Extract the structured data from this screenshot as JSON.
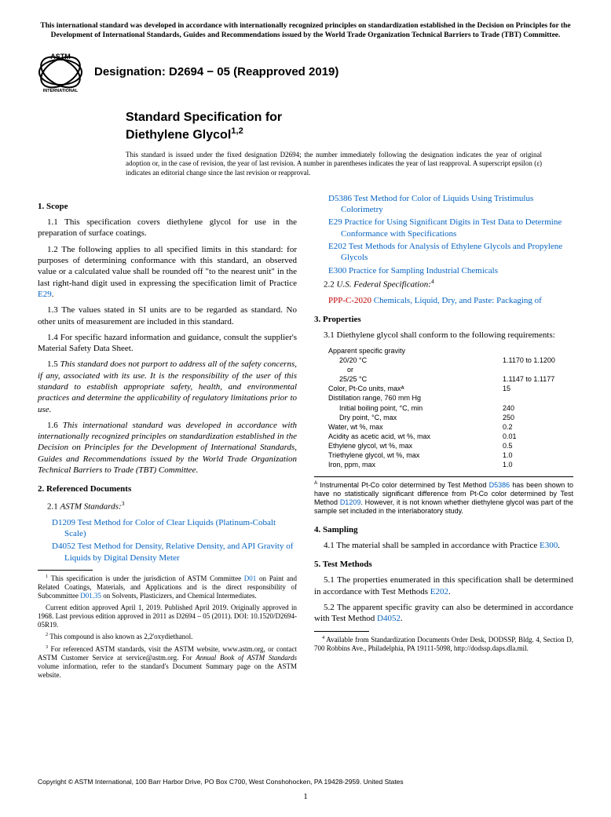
{
  "top_notice": "This international standard was developed in accordance with internationally recognized principles on standardization established in the Decision on Principles for the Development of International Standards, Guides and Recommendations issued by the World Trade Organization Technical Barriers to Trade (TBT) Committee.",
  "logo": {
    "top_text": "ASTM",
    "bottom_text": "INTERNATIONAL"
  },
  "designation_prefix": "Designation: ",
  "designation_code": "D2694 − 05 (Reapproved 2019)",
  "title_line1": "Standard Specification for",
  "title_line2_base": "Diethylene Glycol",
  "title_sup": "1,2",
  "issue_note": "This standard is issued under the fixed designation D2694; the number immediately following the designation indicates the year of original adoption or, in the case of revision, the year of last revision. A number in parentheses indicates the year of last reapproval. A superscript epsilon (ε) indicates an editorial change since the last revision or reapproval.",
  "s1": {
    "head": "1. Scope",
    "p1": "1.1 This specification covers diethylene glycol for use in the preparation of surface coatings.",
    "p2a": "1.2 The following applies to all specified limits in this standard: for purposes of determining conformance with this standard, an observed value or a calculated value shall be rounded off \"to the nearest unit\" in the last right-hand digit used in expressing the specification limit of Practice ",
    "p2_link": "E29",
    "p2b": ".",
    "p3": "1.3 The values stated in SI units are to be regarded as standard. No other units of measurement are included in this standard.",
    "p4": "1.4 For specific hazard information and guidance, consult the supplier's Material Safety Data Sheet.",
    "p5_pre": "1.5 ",
    "p5": "This standard does not purport to address all of the safety concerns, if any, associated with its use. It is the responsibility of the user of this standard to establish appropriate safety, health, and environmental practices and determine the applicability of regulatory limitations prior to use.",
    "p6_pre": "1.6 ",
    "p6": "This international standard was developed in accordance with internationally recognized principles on standardization established in the Decision on Principles for the Development of International Standards, Guides and Recommendations issued by the World Trade Organization Technical Barriers to Trade (TBT) Committee."
  },
  "s2": {
    "head": "2. Referenced Documents",
    "line1a": "2.1 ",
    "line1b": "ASTM Standards:",
    "line1_sup": "3",
    "refs_a": [
      {
        "code": "D1209",
        "text": " Test Method for Color of Clear Liquids (Platinum-Cobalt Scale)"
      },
      {
        "code": "D4052",
        "text": " Test Method for Density, Relative Density, and API Gravity of Liquids by Digital Density Meter"
      }
    ],
    "refs_b": [
      {
        "code": "D5386",
        "text": " Test Method for Color of Liquids Using Tristimulus Colorimetry"
      },
      {
        "code": "E29",
        "text": " Practice for Using Significant Digits in Test Data to Determine Conformance with Specifications"
      },
      {
        "code": "E202",
        "text": " Test Methods for Analysis of Ethylene Glycols and Propylene Glycols"
      },
      {
        "code": "E300",
        "text": " Practice for Sampling Industrial Chemicals"
      }
    ],
    "line2a": "2.2 ",
    "line2b": "U.S. Federal Specification:",
    "line2_sup": "4",
    "ref_ppp_code": "PPP-C-2020",
    "ref_ppp_text": " Chemicals, Liquid, Dry, and Paste: Packaging of"
  },
  "s3": {
    "head": "3. Properties",
    "p1": "3.1 Diethylene glycol shall conform to the following requirements:",
    "rows": [
      {
        "label": "Apparent specific gravity",
        "val": "",
        "indent": 0
      },
      {
        "label": "20/20 °C",
        "val": "1.1170 to 1.1200",
        "indent": 1
      },
      {
        "label": "or",
        "val": "",
        "indent": 2
      },
      {
        "label": "25/25 °C",
        "val": "1.1147 to 1.1177",
        "indent": 1
      },
      {
        "label": "Color, Pt-Co units, maxᴬ",
        "val": "15",
        "indent": 0
      },
      {
        "label": "Distillation range, 760 mm Hg",
        "val": "",
        "indent": 0
      },
      {
        "label": "Initial boiling point, °C, min",
        "val": "240",
        "indent": 1
      },
      {
        "label": "Dry point, °C, max",
        "val": "250",
        "indent": 1
      },
      {
        "label": "Water, wt %, max",
        "val": "0.2",
        "indent": 0
      },
      {
        "label": "Acidity as acetic acid, wt %, max",
        "val": "0.01",
        "indent": 0
      },
      {
        "label": "Ethylene glycol, wt %, max",
        "val": "0.5",
        "indent": 0
      },
      {
        "label": "Triethylene glycol, wt %, max",
        "val": "1.0",
        "indent": 0
      },
      {
        "label": "Iron, ppm, max",
        "val": "1.0",
        "indent": 0
      }
    ],
    "note_sup": "A",
    "note_a": " Instrumental Pt-Co color determined by Test Method ",
    "note_link1": "D5386",
    "note_b": " has been shown to have no statistically significant difference from Pt-Co color determined by Test Method ",
    "note_link2": "D1209",
    "note_c": ". However, it is not known whether diethylene glycol was part of the sample set included in the interlaboratory study."
  },
  "s4": {
    "head": "4. Sampling",
    "p1a": "4.1 The material shall be sampled in accordance with Practice ",
    "p1_link": "E300",
    "p1b": "."
  },
  "s5": {
    "head": "5. Test Methods",
    "p1a": "5.1 The properties enumerated in this specification shall be determined in accordance with Test Methods ",
    "p1_link": "E202",
    "p1b": ".",
    "p2a": "5.2 The apparent specific gravity can also be determined in accordance with Test Method ",
    "p2_link": "D4052",
    "p2b": "."
  },
  "fn": {
    "f1_sup": "1",
    "f1a": " This specification is under the jurisdiction of ASTM Committee ",
    "f1_link1": "D01",
    "f1b": " on Paint and Related Coatings, Materials, and Applications and is the direct responsibility of Subcommittee ",
    "f1_link2": "D01.35",
    "f1c": " on Solvents, Plasticizers, and Chemical Intermediates.",
    "f1d": "Current edition approved April 1, 2019. Published April 2019. Originally approved in 1968. Last previous edition approved in 2011 as D2694 – 05 (2011). DOI: 10.1520/D2694-05R19.",
    "f2_sup": "2",
    "f2": " This compound is also known as 2,2'oxydiethanol.",
    "f3_sup": "3",
    "f3a": " For referenced ASTM standards, visit the ASTM website, www.astm.org, or contact ASTM Customer Service at service@astm.org. For ",
    "f3b": "Annual Book of ASTM Standards",
    "f3c": " volume information, refer to the standard's Document Summary page on the ASTM website.",
    "f4_sup": "4",
    "f4": " Available from Standardization Documents Order Desk, DODSSP, Bldg. 4, Section D, 700 Robbins Ave., Philadelphia, PA 19111-5098, http://dodssp.daps.dla.mil."
  },
  "copyright": "Copyright © ASTM International, 100 Barr Harbor Drive, PO Box C700, West Conshohocken, PA 19428-2959. United States",
  "pagenum": "1",
  "colors": {
    "link_blue": "#0563c1",
    "link_red": "#c00000"
  }
}
